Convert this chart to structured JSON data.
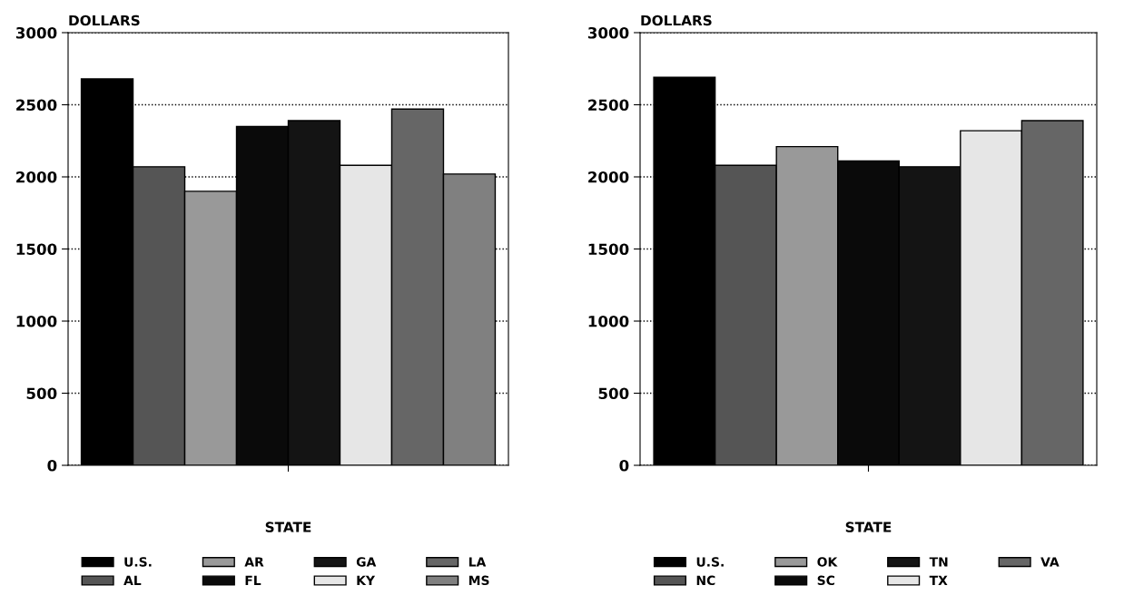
{
  "chart_data": [
    {
      "type": "bar",
      "ylabel": "DOLLARS",
      "xlabel": "STATE",
      "categories": [
        null
      ],
      "ylim": [
        0,
        3000
      ],
      "yticks": [
        0,
        500,
        1000,
        1500,
        2000,
        2500,
        3000
      ],
      "grid": "y",
      "legend": "bottom",
      "series": [
        {
          "name": "U.S.",
          "color": "#000000",
          "values": [
            2680
          ]
        },
        {
          "name": "AL",
          "color": "#555555",
          "values": [
            2070
          ]
        },
        {
          "name": "AR",
          "color": "#999999",
          "values": [
            1900
          ]
        },
        {
          "name": "FL",
          "color": "#0a0a0a",
          "values": [
            2350
          ]
        },
        {
          "name": "GA",
          "color": "#141414",
          "values": [
            2390
          ]
        },
        {
          "name": "KY",
          "color": "#e6e6e6",
          "values": [
            2080
          ]
        },
        {
          "name": "LA",
          "color": "#666666",
          "values": [
            2470
          ]
        },
        {
          "name": "MS",
          "color": "#808080",
          "values": [
            2020
          ]
        }
      ]
    },
    {
      "type": "bar",
      "ylabel": "DOLLARS",
      "xlabel": "STATE",
      "categories": [
        null
      ],
      "ylim": [
        0,
        3000
      ],
      "yticks": [
        0,
        500,
        1000,
        1500,
        2000,
        2500,
        3000
      ],
      "grid": "y",
      "legend": "bottom",
      "series": [
        {
          "name": "U.S.",
          "color": "#000000",
          "values": [
            2690
          ]
        },
        {
          "name": "NC",
          "color": "#555555",
          "values": [
            2080
          ]
        },
        {
          "name": "OK",
          "color": "#999999",
          "values": [
            2210
          ]
        },
        {
          "name": "SC",
          "color": "#0a0a0a",
          "values": [
            2110
          ]
        },
        {
          "name": "TN",
          "color": "#141414",
          "values": [
            2070
          ]
        },
        {
          "name": "TX",
          "color": "#e6e6e6",
          "values": [
            2320
          ]
        },
        {
          "name": "VA",
          "color": "#666666",
          "values": [
            2390
          ]
        }
      ]
    }
  ]
}
